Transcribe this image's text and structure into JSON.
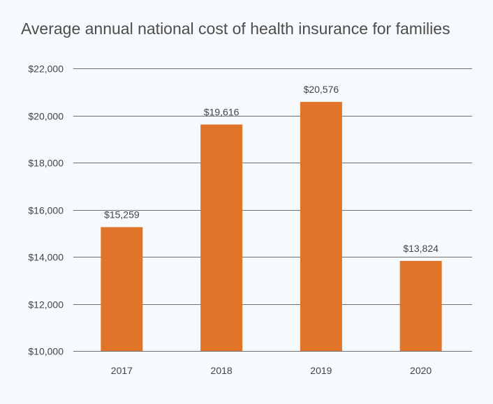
{
  "chart_data": {
    "type": "bar",
    "title": "Average annual national cost of health insurance for families",
    "categories": [
      "2017",
      "2018",
      "2019",
      "2020"
    ],
    "values": [
      15259,
      19616,
      20576,
      13824
    ],
    "value_labels": [
      "$15,259",
      "$19,616",
      "$20,576",
      "$13,824"
    ],
    "ylim": [
      10000,
      22000
    ],
    "yticks": [
      10000,
      12000,
      14000,
      16000,
      18000,
      20000,
      22000
    ],
    "ytick_labels": [
      "$10,000",
      "$12,000",
      "$14,000",
      "$16,000",
      "$18,000",
      "$20,000",
      "$22,000"
    ],
    "xlabel": "",
    "ylabel": "",
    "grid": true,
    "legend": "none",
    "bar_color": "#e07428",
    "background": "#f6fafc"
  }
}
